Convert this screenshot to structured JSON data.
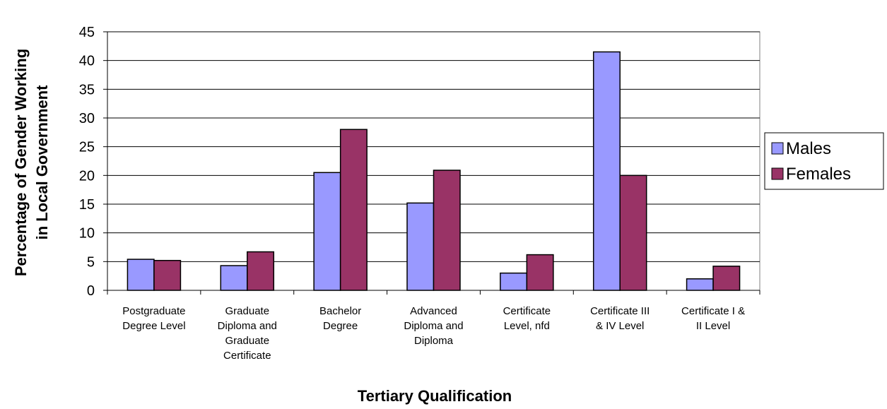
{
  "chart_data": {
    "type": "bar",
    "ylabel": "Percentage of Gender Working\nin Local Government",
    "xlabel": "Tertiary Qualification",
    "categories": [
      "Postgraduate\nDegree Level",
      "Graduate\nDiploma and\nGraduate\nCertificate",
      "Bachelor\nDegree",
      "Advanced\nDiploma and\nDiploma",
      "Certificate\nLevel, nfd",
      "Certificate III\n& IV Level",
      "Certificate I &\nII Level"
    ],
    "series": [
      {
        "name": "Males",
        "color": "#9999ff",
        "values": [
          5.4,
          4.3,
          20.5,
          15.2,
          3.0,
          41.5,
          2.0
        ]
      },
      {
        "name": "Females",
        "color": "#993366",
        "values": [
          5.2,
          6.7,
          28.0,
          20.9,
          6.2,
          20.0,
          4.2
        ]
      }
    ],
    "ylim": [
      0,
      45
    ],
    "yticks": [
      0,
      5,
      10,
      15,
      20,
      25,
      30,
      35,
      40,
      45
    ],
    "grid": true,
    "legend": "right"
  }
}
